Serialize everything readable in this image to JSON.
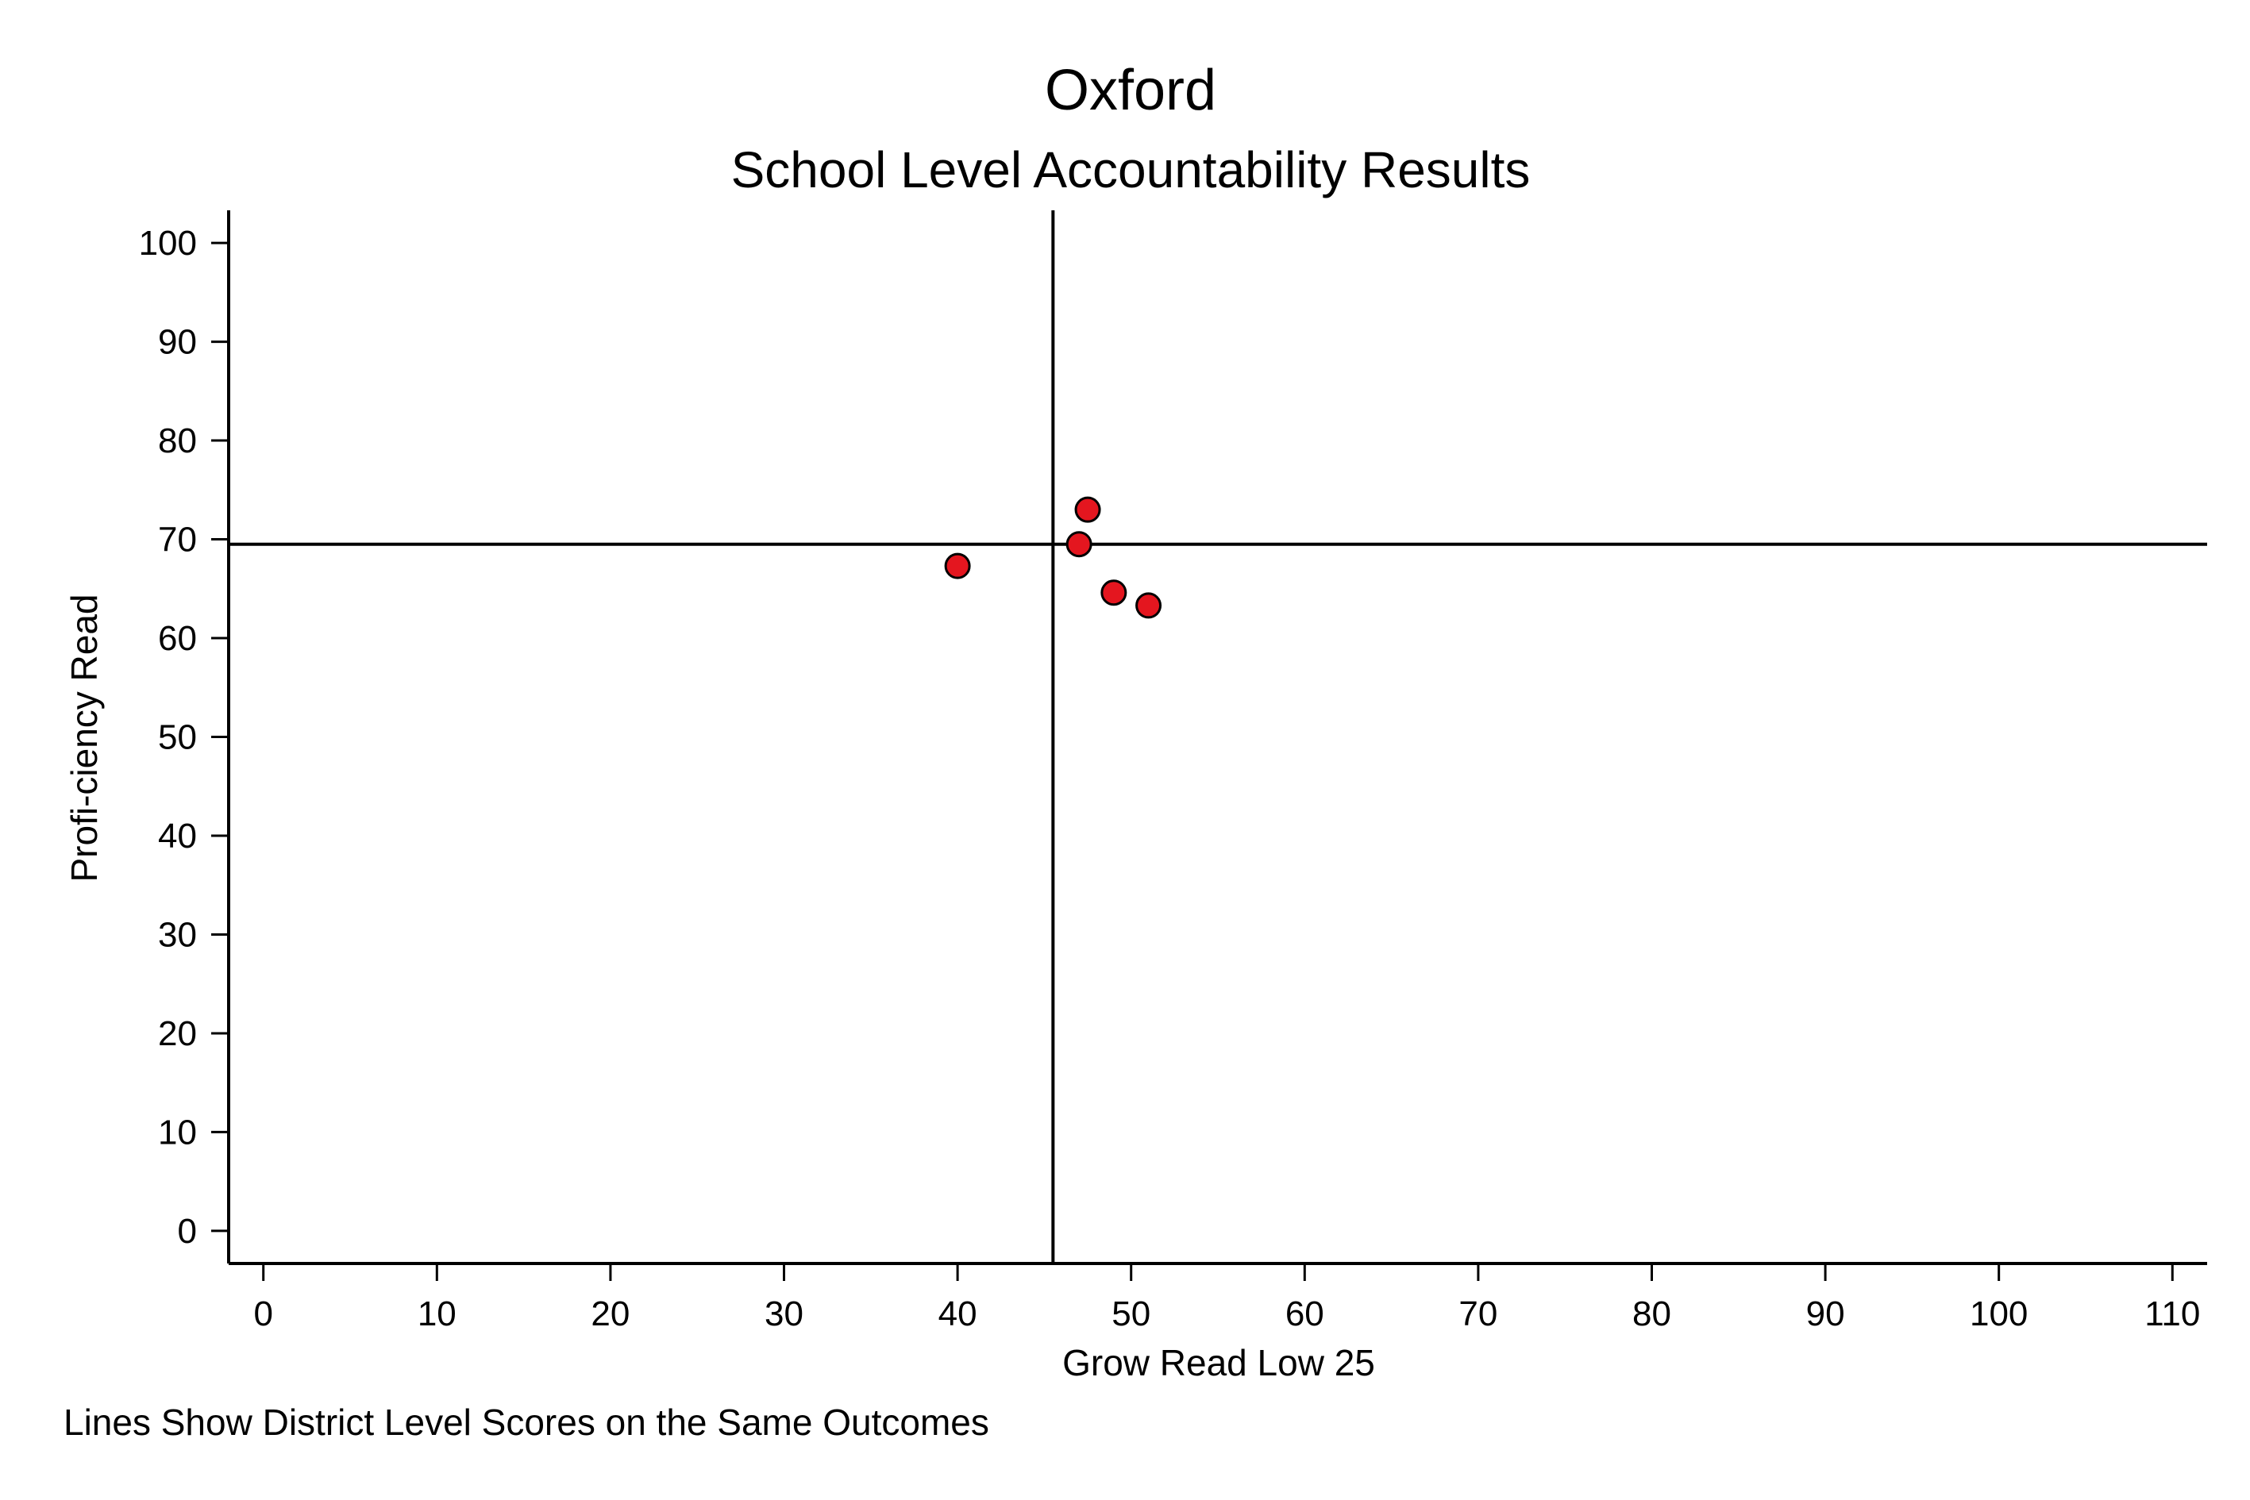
{
  "chart_data": {
    "type": "scatter",
    "title": "Oxford",
    "subtitle": "School Level Accountability Results",
    "xlabel": "Grow Read Low 25",
    "ylabel": "Profi-ciency Read",
    "note": "Lines Show District Level Scores on the Same Outcomes",
    "xlim": [
      -2,
      112
    ],
    "ylim": [
      -3.3,
      103.3
    ],
    "x_ticks": [
      0,
      10,
      20,
      30,
      40,
      50,
      60,
      70,
      80,
      90,
      100,
      110
    ],
    "y_ticks": [
      0,
      10,
      20,
      30,
      40,
      50,
      60,
      70,
      80,
      90,
      100
    ],
    "reference_lines": {
      "district_x": 45.5,
      "district_y": 69.5
    },
    "grid": false,
    "legend": "none",
    "marker_color": "#e4161f",
    "marker_edge_color": "#000000",
    "points": [
      {
        "x": 40.0,
        "y": 67.3
      },
      {
        "x": 47.0,
        "y": 69.5
      },
      {
        "x": 47.5,
        "y": 73.0
      },
      {
        "x": 49.0,
        "y": 64.6
      },
      {
        "x": 51.0,
        "y": 63.3
      }
    ]
  }
}
